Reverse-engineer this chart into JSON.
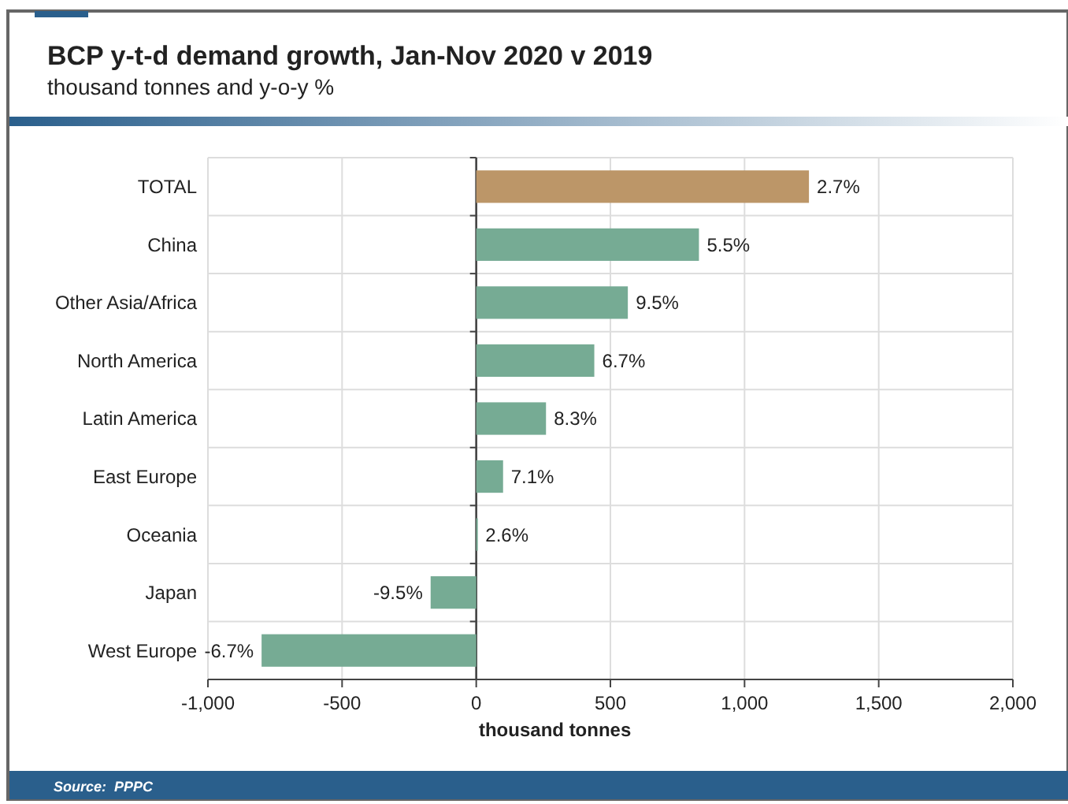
{
  "chart_data": {
    "type": "bar",
    "orientation": "horizontal",
    "title": "BCP y-t-d demand growth, Jan-Nov 2020 v 2019",
    "subtitle": "thousand tonnes and y-o-y %",
    "xlabel": "thousand tonnes",
    "categories": [
      "TOTAL",
      "China",
      "Other Asia/Africa",
      "North America",
      "Latin America",
      "East Europe",
      "Oceania",
      "Japan",
      "West Europe"
    ],
    "values": [
      1240,
      830,
      565,
      440,
      260,
      100,
      5,
      -170,
      -800
    ],
    "colors": [
      "#bc9668",
      "#76ab94",
      "#76ab94",
      "#76ab94",
      "#76ab94",
      "#76ab94",
      "#76ab94",
      "#76ab94",
      "#76ab94"
    ],
    "xlim": [
      -1000,
      2000
    ],
    "xticks": [
      {
        "value": -1000,
        "label": "-1,000"
      },
      {
        "value": -500,
        "label": "-500"
      },
      0,
      500,
      {
        "value": 1000,
        "label": "1,000"
      },
      {
        "value": 1500,
        "label": "1,500"
      },
      {
        "value": 2000,
        "label": "2,000"
      }
    ],
    "grid": true,
    "annotations": [
      "Source:  PPPC",
      {
        "text": "2.7%",
        "x": 1240,
        "y": "TOTAL"
      },
      {
        "text": "5.5%",
        "x": 830,
        "y": "China"
      },
      {
        "text": "9.5%",
        "x": 565,
        "y": "Other Asia/Africa"
      },
      {
        "text": "6.7%",
        "x": 440,
        "y": "North America"
      },
      {
        "text": "8.3%",
        "x": 260,
        "y": "Latin America"
      },
      {
        "text": "7.1%",
        "x": 100,
        "y": "East Europe"
      },
      {
        "text": "2.6%",
        "x": 5,
        "y": "Oceania"
      },
      {
        "text": "-9.5%",
        "x": -170,
        "y": "Japan"
      },
      {
        "text": "-6.7%",
        "x": -800,
        "y": "West Europe"
      }
    ]
  }
}
